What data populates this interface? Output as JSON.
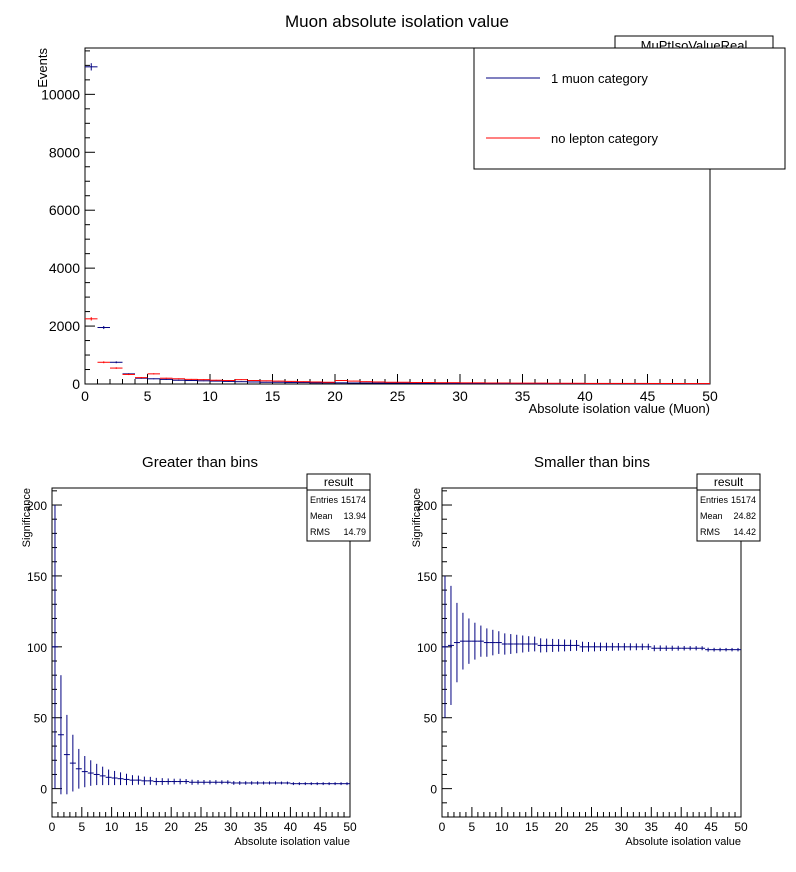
{
  "chart_data": [
    {
      "type": "bar",
      "title": "Muon absolute isolation value",
      "xlabel": "Absolute isolation value (Muon)",
      "ylabel": "Events",
      "xlim": [
        0,
        50
      ],
      "ylim": [
        0,
        11600
      ],
      "xticks": [
        0,
        5,
        10,
        15,
        20,
        25,
        30,
        35,
        40,
        45,
        50
      ],
      "yticks": [
        0,
        2000,
        4000,
        6000,
        8000,
        10000
      ],
      "stats_box_title": "MuPtIsoValueReal",
      "legend": {
        "placement": "top-right",
        "entries": [
          "1 muon category",
          "no lepton category"
        ]
      },
      "bin_width": 1,
      "series": [
        {
          "name": "1 muon category",
          "color": "#000080",
          "values": [
            10950,
            1950,
            750,
            350,
            200,
            180,
            160,
            130,
            120,
            110,
            100,
            90,
            80,
            70,
            60,
            60,
            50,
            50,
            40,
            40,
            40,
            35,
            35,
            30,
            30,
            30,
            25,
            25,
            25,
            20,
            20,
            20,
            20,
            18,
            18,
            18,
            15,
            15,
            15,
            15,
            12,
            12,
            12,
            12,
            10,
            10,
            10,
            10,
            10,
            10
          ]
        },
        {
          "name": "no lepton category",
          "color": "#ff0000",
          "values": [
            2250,
            750,
            550,
            330,
            220,
            350,
            200,
            180,
            160,
            150,
            130,
            120,
            150,
            120,
            110,
            100,
            90,
            80,
            70,
            60,
            120,
            100,
            80,
            70,
            60,
            60,
            50,
            50,
            45,
            45,
            40,
            40,
            35,
            35,
            30,
            30,
            30,
            25,
            25,
            25,
            20,
            20,
            20,
            20,
            20,
            18,
            18,
            18,
            15,
            15
          ]
        }
      ]
    },
    {
      "type": "scatter",
      "title": "Greater than bins",
      "xlabel": "Absolute isolation value",
      "ylabel": "Significance",
      "xlim": [
        0,
        50
      ],
      "ylim": [
        -20,
        212
      ],
      "xticks": [
        0,
        5,
        10,
        15,
        20,
        25,
        30,
        35,
        40,
        45,
        50
      ],
      "yticks": [
        0,
        50,
        100,
        150,
        200
      ],
      "stats": {
        "title": "result",
        "rows": [
          [
            "Entries",
            "15174"
          ],
          [
            "Mean",
            "13.94"
          ],
          [
            "RMS",
            "14.79"
          ]
        ]
      },
      "color": "#000080",
      "x": [
        0.5,
        1.5,
        2.5,
        3.5,
        4.5,
        5.5,
        6.5,
        7.5,
        8.5,
        9.5,
        10.5,
        11.5,
        12.5,
        13.5,
        14.5,
        15.5,
        16.5,
        17.5,
        18.5,
        19.5,
        20.5,
        21.5,
        22.5,
        23.5,
        24.5,
        25.5,
        26.5,
        27.5,
        28.5,
        29.5,
        30.5,
        31.5,
        32.5,
        33.5,
        34.5,
        35.5,
        36.5,
        37.5,
        38.5,
        39.5,
        40.5,
        41.5,
        42.5,
        43.5,
        44.5,
        45.5,
        46.5,
        47.5,
        48.5,
        49.5
      ],
      "y": [
        100,
        38,
        24,
        18,
        14,
        12,
        11,
        10,
        9,
        8,
        7.5,
        7,
        6.5,
        6,
        6,
        5.5,
        5.5,
        5,
        5,
        5,
        5,
        5,
        5,
        4.5,
        4.5,
        4.5,
        4.5,
        4.5,
        4.5,
        4.5,
        4,
        4,
        4,
        4,
        4,
        4,
        4,
        4,
        4,
        4,
        3.5,
        3.5,
        3.5,
        3.5,
        3.5,
        3.5,
        3.5,
        3.5,
        3.5,
        3.5
      ],
      "yerr": [
        100,
        42,
        28,
        20,
        14,
        11,
        9,
        7.5,
        6.5,
        5.5,
        5,
        4.5,
        4,
        3.5,
        3.2,
        3,
        2.8,
        2.6,
        2.4,
        2.2,
        2,
        2,
        1.8,
        1.8,
        1.6,
        1.6,
        1.5,
        1.5,
        1.4,
        1.4,
        1.3,
        1.3,
        1.2,
        1.2,
        1.2,
        1.1,
        1.1,
        1.1,
        1,
        1,
        1,
        1,
        1,
        1,
        1,
        1,
        1,
        1,
        1,
        1
      ]
    },
    {
      "type": "scatter",
      "title": "Smaller than bins",
      "xlabel": "Absolute isolation value",
      "ylabel": "Significance",
      "xlim": [
        0,
        50
      ],
      "ylim": [
        -20,
        212
      ],
      "xticks": [
        0,
        5,
        10,
        15,
        20,
        25,
        30,
        35,
        40,
        45,
        50
      ],
      "yticks": [
        0,
        50,
        100,
        150,
        200
      ],
      "stats": {
        "title": "result",
        "rows": [
          [
            "Entries",
            "15174"
          ],
          [
            "Mean",
            "24.82"
          ],
          [
            "RMS",
            "14.42"
          ]
        ]
      },
      "color": "#000080",
      "x": [
        0.5,
        1.5,
        2.5,
        3.5,
        4.5,
        5.5,
        6.5,
        7.5,
        8.5,
        9.5,
        10.5,
        11.5,
        12.5,
        13.5,
        14.5,
        15.5,
        16.5,
        17.5,
        18.5,
        19.5,
        20.5,
        21.5,
        22.5,
        23.5,
        24.5,
        25.5,
        26.5,
        27.5,
        28.5,
        29.5,
        30.5,
        31.5,
        32.5,
        33.5,
        34.5,
        35.5,
        36.5,
        37.5,
        38.5,
        39.5,
        40.5,
        41.5,
        42.5,
        43.5,
        44.5,
        45.5,
        46.5,
        47.5,
        48.5,
        49.5
      ],
      "y": [
        100,
        101,
        103,
        104,
        104,
        104,
        104,
        103,
        103,
        103,
        102,
        102,
        102,
        102,
        102,
        102,
        101,
        101,
        101,
        101,
        101,
        101,
        101,
        100,
        100,
        100,
        100,
        100,
        100,
        100,
        100,
        100,
        100,
        100,
        100,
        99,
        99,
        99,
        99,
        99,
        99,
        99,
        99,
        99,
        98,
        98,
        98,
        98,
        98,
        98
      ],
      "yerr": [
        50,
        42,
        28,
        20,
        16,
        13,
        11,
        10,
        9,
        8,
        7.5,
        7,
        6.5,
        6,
        5.5,
        5.2,
        5,
        4.8,
        4.6,
        4.4,
        4.2,
        4,
        3.8,
        3.6,
        3.4,
        3.2,
        3,
        2.9,
        2.8,
        2.7,
        2.6,
        2.5,
        2.4,
        2.3,
        2.2,
        2.1,
        2,
        1.9,
        1.8,
        1.7,
        1.6,
        1.5,
        1.5,
        1.4,
        1.4,
        1.3,
        1.3,
        1.2,
        1.2,
        1.2
      ]
    }
  ]
}
